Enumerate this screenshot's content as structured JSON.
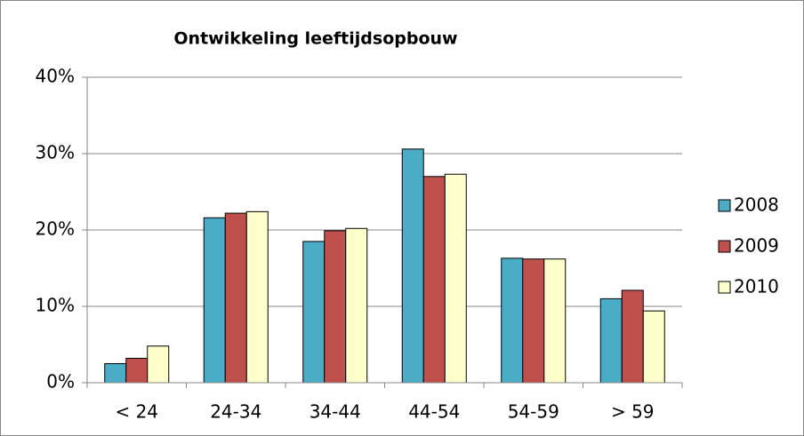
{
  "chart_data": {
    "type": "bar",
    "title": "Ontwikkeling leeftijdsopbouw",
    "categories": [
      "< 24",
      "24-34",
      "34-44",
      "44-54",
      "54-59",
      "> 59"
    ],
    "series": [
      {
        "name": "2008",
        "color": "#4bacc6",
        "values": [
          2.5,
          21.6,
          18.5,
          30.6,
          16.3,
          11.0
        ]
      },
      {
        "name": "2009",
        "color": "#c0504d",
        "values": [
          3.2,
          22.2,
          19.9,
          27.0,
          16.2,
          12.1
        ]
      },
      {
        "name": "2010",
        "color": "#ffffcc",
        "values": [
          4.8,
          22.4,
          20.2,
          27.3,
          16.2,
          9.4
        ]
      }
    ],
    "ylim": [
      0,
      40
    ],
    "yticks": [
      {
        "value": 0,
        "label": "0%"
      },
      {
        "value": 10,
        "label": "10%"
      },
      {
        "value": 20,
        "label": "20%"
      },
      {
        "value": 30,
        "label": "30%"
      },
      {
        "value": 40,
        "label": "40%"
      }
    ],
    "grid": true,
    "legend": "right"
  }
}
